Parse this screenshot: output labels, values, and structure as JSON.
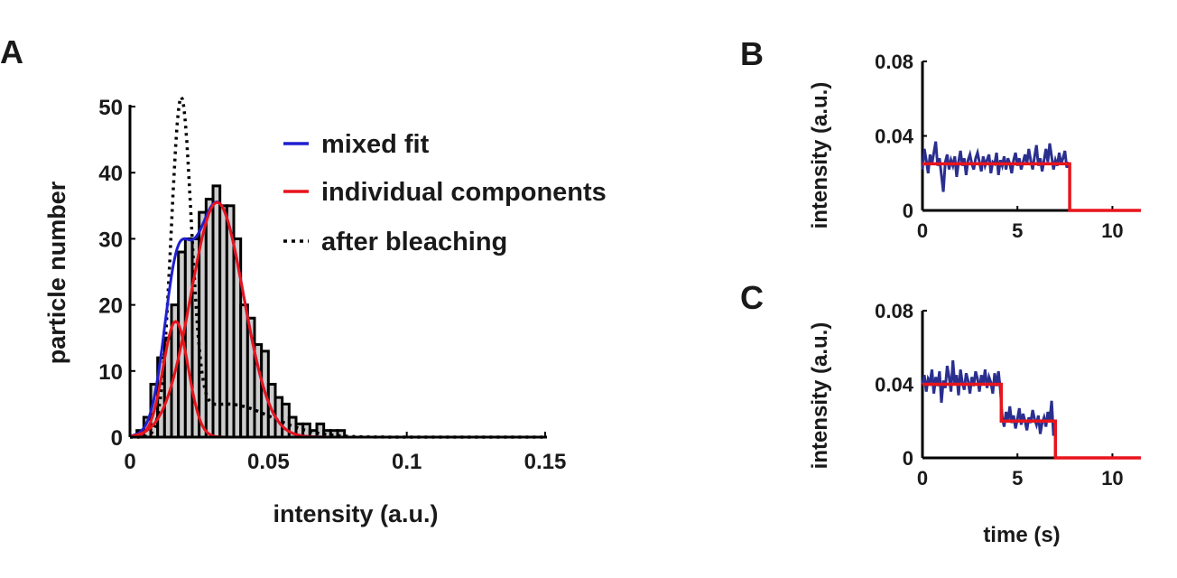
{
  "panels": {
    "A": {
      "letter": "A"
    },
    "B": {
      "letter": "B"
    },
    "C": {
      "letter": "C"
    }
  },
  "colors": {
    "blue": "#1f1fd0",
    "red": "#e8141c",
    "trace": "#2a2f8f",
    "bar_fill": "#cdcdcd"
  },
  "chart_data": [
    {
      "id": "A",
      "type": "bar",
      "title": "",
      "xlabel": "intensity (a.u.)",
      "ylabel": "particle number",
      "xlim": [
        0,
        0.15
      ],
      "ylim": [
        0,
        50
      ],
      "xticks": [
        0,
        0.05,
        0.1,
        0.15
      ],
      "xtick_labels": [
        "0",
        "0.05",
        "0.1",
        "0.15"
      ],
      "yticks": [
        0,
        10,
        20,
        30,
        40,
        50
      ],
      "ytick_labels": [
        "0",
        "10",
        "20",
        "30",
        "40",
        "50"
      ],
      "bin_width": 0.0025,
      "bin_starts": [
        0.0025,
        0.005,
        0.0075,
        0.01,
        0.0125,
        0.015,
        0.0175,
        0.02,
        0.0225,
        0.025,
        0.0275,
        0.03,
        0.0325,
        0.035,
        0.0375,
        0.04,
        0.0425,
        0.045,
        0.0475,
        0.05,
        0.0525,
        0.055,
        0.0575,
        0.06,
        0.0625,
        0.065,
        0.0675,
        0.07,
        0.0725,
        0.075
      ],
      "values": [
        1,
        3,
        8,
        12,
        15,
        20,
        28,
        30,
        30,
        34,
        36,
        38,
        35,
        35,
        30,
        20,
        18,
        14,
        13,
        8,
        6,
        5,
        3,
        2,
        2,
        1,
        2,
        1,
        1,
        1
      ],
      "legend": [
        {
          "label": "mixed fit",
          "style": "solid",
          "color": "#1f1fd0"
        },
        {
          "label": "individual components",
          "style": "solid",
          "color": "#e8141c"
        },
        {
          "label": "after bleaching",
          "style": "dotted",
          "color": "#000000"
        }
      ],
      "legend_position": "top-right",
      "curves": {
        "component_1": {
          "amplitude": 17.5,
          "mean": 0.0165,
          "sigma": 0.0045
        },
        "component_2": {
          "amplitude": 35.5,
          "mean": 0.0315,
          "sigma": 0.0095
        },
        "after_bleaching": {
          "amplitude": 48.5,
          "mean": 0.0185,
          "sigma": 0.0036,
          "tail_amplitude": 5,
          "tail_mean": 0.035,
          "tail_sigma": 0.016
        }
      }
    },
    {
      "id": "B",
      "type": "line",
      "xlabel": "",
      "ylabel": "intensity (a.u.)",
      "xlim": [
        0,
        11.5
      ],
      "ylim": [
        0,
        0.08
      ],
      "xticks": [
        0,
        5,
        10
      ],
      "xtick_labels": [
        "0",
        "5",
        "10"
      ],
      "yticks": [
        0,
        0.04,
        0.08
      ],
      "ytick_labels": [
        "0",
        "0.04",
        "0.08"
      ],
      "series": [
        {
          "name": "trace",
          "color": "#2a2f8f",
          "x": [
            0.0,
            0.1,
            0.2,
            0.3,
            0.4,
            0.5,
            0.6,
            0.7,
            0.8,
            0.9,
            1.0,
            1.1,
            1.2,
            1.3,
            1.4,
            1.5,
            1.6,
            1.7,
            1.8,
            1.9,
            2.0,
            2.1,
            2.2,
            2.3,
            2.4,
            2.5,
            2.6,
            2.7,
            2.8,
            2.9,
            3.0,
            3.1,
            3.2,
            3.3,
            3.4,
            3.5,
            3.6,
            3.7,
            3.8,
            3.9,
            4.0,
            4.1,
            4.2,
            4.3,
            4.4,
            4.5,
            4.6,
            4.7,
            4.8,
            4.9,
            5.0,
            5.1,
            5.2,
            5.3,
            5.4,
            5.5,
            5.6,
            5.7,
            5.8,
            5.9,
            6.0,
            6.1,
            6.2,
            6.3,
            6.4,
            6.5,
            6.6,
            6.7,
            6.8,
            6.9,
            7.0,
            7.1,
            7.2,
            7.3,
            7.4,
            7.5,
            7.6,
            7.7
          ],
          "y": [
            0.022,
            0.033,
            0.027,
            0.02,
            0.03,
            0.025,
            0.031,
            0.037,
            0.024,
            0.028,
            0.019,
            0.01,
            0.026,
            0.03,
            0.022,
            0.027,
            0.024,
            0.029,
            0.018,
            0.026,
            0.032,
            0.024,
            0.028,
            0.019,
            0.027,
            0.03,
            0.025,
            0.022,
            0.028,
            0.031,
            0.026,
            0.021,
            0.029,
            0.024,
            0.027,
            0.03,
            0.02,
            0.026,
            0.025,
            0.031,
            0.019,
            0.027,
            0.024,
            0.029,
            0.022,
            0.028,
            0.025,
            0.02,
            0.027,
            0.031,
            0.024,
            0.028,
            0.022,
            0.026,
            0.03,
            0.025,
            0.033,
            0.027,
            0.022,
            0.029,
            0.035,
            0.024,
            0.028,
            0.021,
            0.027,
            0.033,
            0.026,
            0.036,
            0.029,
            0.022,
            0.027,
            0.024,
            0.031,
            0.025,
            0.028,
            0.032,
            0.023,
            0.026
          ]
        },
        {
          "name": "step fit",
          "color": "#e8141c",
          "x": [
            0,
            7.75,
            7.75,
            11.5
          ],
          "y": [
            0.025,
            0.025,
            0,
            0
          ]
        }
      ]
    },
    {
      "id": "C",
      "type": "line",
      "xlabel": "time (s)",
      "ylabel": "intensity (a.u.)",
      "xlim": [
        0,
        11.5
      ],
      "ylim": [
        0,
        0.08
      ],
      "xticks": [
        0,
        5,
        10
      ],
      "xtick_labels": [
        "0",
        "5",
        "10"
      ],
      "yticks": [
        0,
        0.04,
        0.08
      ],
      "ytick_labels": [
        "0",
        "0.04",
        "0.08"
      ],
      "series": [
        {
          "name": "trace",
          "color": "#2a2f8f",
          "x": [
            0.0,
            0.1,
            0.2,
            0.3,
            0.4,
            0.5,
            0.6,
            0.7,
            0.8,
            0.9,
            1.0,
            1.1,
            1.2,
            1.3,
            1.4,
            1.5,
            1.6,
            1.7,
            1.8,
            1.9,
            2.0,
            2.1,
            2.2,
            2.3,
            2.4,
            2.5,
            2.6,
            2.7,
            2.8,
            2.9,
            3.0,
            3.1,
            3.2,
            3.3,
            3.4,
            3.5,
            3.6,
            3.7,
            3.8,
            3.9,
            4.0,
            4.1,
            4.2,
            4.3,
            4.4,
            4.5,
            4.6,
            4.7,
            4.8,
            4.9,
            5.0,
            5.1,
            5.2,
            5.3,
            5.4,
            5.5,
            5.6,
            5.7,
            5.8,
            5.9,
            6.0,
            6.1,
            6.2,
            6.3,
            6.4,
            6.5,
            6.6,
            6.7,
            6.8,
            6.9
          ],
          "y": [
            0.04,
            0.045,
            0.036,
            0.043,
            0.041,
            0.048,
            0.035,
            0.044,
            0.039,
            0.047,
            0.03,
            0.042,
            0.038,
            0.05,
            0.044,
            0.036,
            0.053,
            0.04,
            0.045,
            0.034,
            0.048,
            0.041,
            0.037,
            0.046,
            0.042,
            0.035,
            0.044,
            0.039,
            0.047,
            0.043,
            0.036,
            0.045,
            0.04,
            0.048,
            0.038,
            0.044,
            0.041,
            0.035,
            0.046,
            0.039,
            0.047,
            0.037,
            0.022,
            0.017,
            0.025,
            0.02,
            0.028,
            0.019,
            0.023,
            0.016,
            0.021,
            0.027,
            0.018,
            0.024,
            0.02,
            0.015,
            0.022,
            0.019,
            0.026,
            0.021,
            0.018,
            0.023,
            0.013,
            0.019,
            0.022,
            0.017,
            0.025,
            0.02,
            0.031,
            0.012
          ]
        },
        {
          "name": "step fit",
          "color": "#e8141c",
          "x": [
            0,
            4.15,
            4.15,
            7.0,
            7.0,
            11.5
          ],
          "y": [
            0.04,
            0.04,
            0.02,
            0.02,
            0,
            0
          ]
        }
      ]
    }
  ]
}
